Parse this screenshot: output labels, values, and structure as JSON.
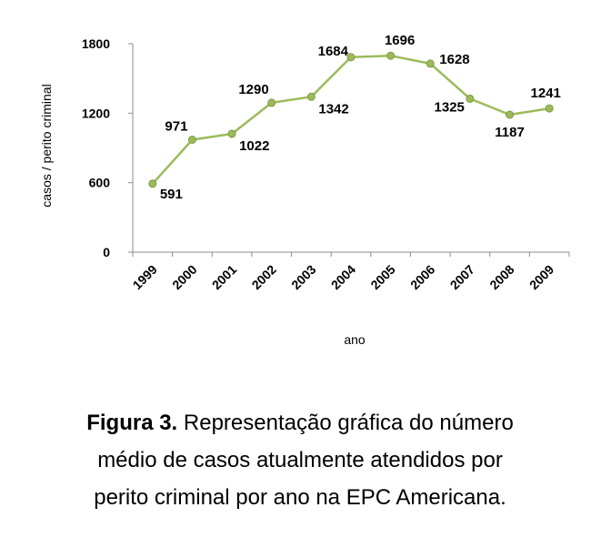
{
  "chart_data": {
    "type": "line",
    "x": [
      "1999",
      "2000",
      "2001",
      "2002",
      "2003",
      "2004",
      "2005",
      "2006",
      "2007",
      "2008",
      "2009"
    ],
    "series": [
      {
        "values": [
          591,
          971,
          1022,
          1290,
          1342,
          1684,
          1696,
          1628,
          1325,
          1187,
          1241
        ]
      }
    ],
    "data_labels": [
      "591",
      "971",
      "1022",
      "1290",
      "1342",
      "1684",
      "1696",
      "1628",
      "1325",
      "1187",
      "1241"
    ],
    "xlabel": "ano",
    "ylabel": "casos / perito criminal",
    "ylim": [
      0,
      1800
    ],
    "yticks": [
      "0",
      "600",
      "1200",
      "1800"
    ],
    "grid": false,
    "colors": {
      "line": "#9bbb59",
      "marker": "#9bbb59",
      "axis": "#8c8c8c"
    }
  },
  "caption": {
    "bold": "Figura 3.",
    "line1_rest": " Representação gráfica do número",
    "line2": "médio de casos atualmente atendidos por",
    "line3": "perito criminal por ano na EPC Americana."
  }
}
